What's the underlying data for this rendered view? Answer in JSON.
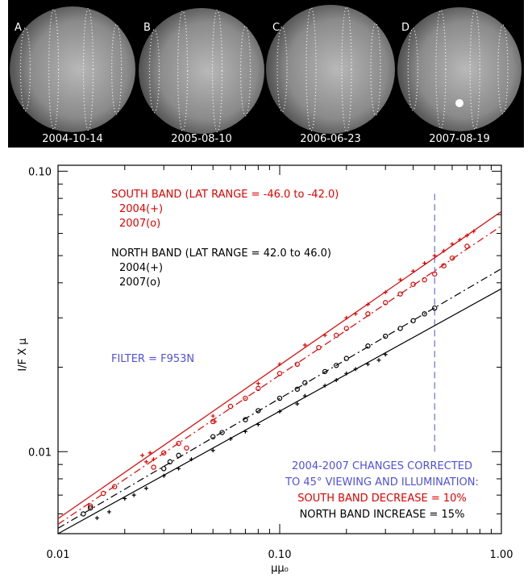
{
  "images": [
    {
      "label": "A",
      "date": "2004-10-14"
    },
    {
      "label": "B",
      "date": "2005-08-10"
    },
    {
      "label": "C",
      "date": "2006-06-23"
    },
    {
      "label": "D",
      "date": "2007-08-19"
    }
  ],
  "chart_data": {
    "type": "scatter",
    "xlabel": "μμ₀",
    "ylabel": "I/F X μ",
    "log_x": true,
    "log_y": true,
    "xlim": [
      0.01,
      1.0
    ],
    "ylim": [
      0.0051,
      0.105
    ],
    "xticks": [
      {
        "value": 0.01,
        "label": "0.01"
      },
      {
        "value": 0.1,
        "label": "0.10"
      },
      {
        "value": 1,
        "label": "1.00"
      }
    ],
    "yticks": [
      {
        "value": 0.01,
        "label": "0.01"
      },
      {
        "value": 0.1,
        "label": "0.10"
      }
    ],
    "xminor": [
      0.02,
      0.03,
      0.04,
      0.05,
      0.06,
      0.07,
      0.08,
      0.09,
      0.2,
      0.3,
      0.4,
      0.5,
      0.6,
      0.7,
      0.8,
      0.9
    ],
    "yminor": [
      0.006,
      0.007,
      0.008,
      0.009,
      0.02,
      0.03,
      0.04,
      0.05,
      0.06,
      0.07,
      0.08,
      0.09
    ],
    "annotations": [
      {
        "text": "SOUTH BAND (LAT RANGE = -46.0 to -42.0)",
        "color": "#e00000"
      },
      {
        "text": "NORTH BAND (LAT RANGE =  42.0 to  46.0)",
        "color": "#000000"
      },
      {
        "text": "FILTER = F953N",
        "color": "#5050e0"
      },
      {
        "text": "2004-2007 CHANGES CORRECTED",
        "color": "#5050e0"
      },
      {
        "text": "TO 45° VIEWING AND ILLUMINATION:",
        "color": "#5050e0"
      },
      {
        "text": "SOUTH BAND DECREASE =  10%",
        "color": "#e00000"
      },
      {
        "text": "NORTH BAND INCREASE =  15%",
        "color": "#000000"
      }
    ],
    "vline": {
      "x": 0.5,
      "y": [
        0.01,
        0.083
      ],
      "color": "#5050e0"
    },
    "fits": [
      {
        "color": "#e00000",
        "style": "solid",
        "x": [
          0.01,
          1.0
        ],
        "values": [
          0.00577,
          0.0718
        ]
      },
      {
        "color": "#e00000",
        "style": "dashdot",
        "x": [
          0.01,
          1.0
        ],
        "values": [
          0.00551,
          0.0638
        ]
      },
      {
        "color": "#000000",
        "style": "dashdot",
        "x": [
          0.01,
          1.0
        ],
        "values": [
          0.00533,
          0.0449
        ]
      },
      {
        "color": "#000000",
        "style": "solid",
        "x": [
          0.01,
          1.0
        ],
        "values": [
          0.0051,
          0.0381
        ]
      }
    ],
    "series": [
      {
        "name": "2004(+)",
        "color": "#e00000",
        "marker": "plus",
        "x": [
          0.024,
          0.025,
          0.026,
          0.027,
          0.05,
          0.051,
          0.08,
          0.1,
          0.13,
          0.16,
          0.2,
          0.22,
          0.25,
          0.3,
          0.35,
          0.4,
          0.45,
          0.5,
          0.55,
          0.6,
          0.65,
          0.7,
          0.75
        ],
        "values": [
          0.0097,
          0.0092,
          0.0099,
          0.0094,
          0.0134,
          0.0128,
          0.0175,
          0.0205,
          0.024,
          0.026,
          0.03,
          0.031,
          0.0335,
          0.037,
          0.041,
          0.044,
          0.047,
          0.05,
          0.052,
          0.055,
          0.057,
          0.059,
          0.061
        ]
      },
      {
        "name": "2007(o)",
        "color": "#e00000",
        "marker": "circle",
        "x": [
          0.014,
          0.016,
          0.018,
          0.027,
          0.03,
          0.035,
          0.038,
          0.05,
          0.06,
          0.07,
          0.08,
          0.1,
          0.12,
          0.15,
          0.18,
          0.2,
          0.25,
          0.3,
          0.35,
          0.4,
          0.45,
          0.5,
          0.55,
          0.6,
          0.7
        ],
        "values": [
          0.0064,
          0.0071,
          0.0075,
          0.0088,
          0.0099,
          0.0107,
          0.0103,
          0.0128,
          0.0145,
          0.0155,
          0.0168,
          0.019,
          0.0205,
          0.0235,
          0.026,
          0.0275,
          0.031,
          0.034,
          0.0365,
          0.0395,
          0.041,
          0.043,
          0.046,
          0.049,
          0.054
        ]
      },
      {
        "name": "2004(+)",
        "color": "#000000",
        "marker": "plus",
        "x": [
          0.015,
          0.017,
          0.02,
          0.022,
          0.025,
          0.03,
          0.035,
          0.04,
          0.05,
          0.06,
          0.07,
          0.08,
          0.1,
          0.12,
          0.13,
          0.16,
          0.18,
          0.2,
          0.22,
          0.25,
          0.28,
          0.3
        ],
        "values": [
          0.0058,
          0.0061,
          0.0068,
          0.007,
          0.0074,
          0.0082,
          0.0087,
          0.0094,
          0.0101,
          0.0111,
          0.0118,
          0.0125,
          0.0139,
          0.0148,
          0.0158,
          0.0172,
          0.018,
          0.019,
          0.0197,
          0.0205,
          0.0212,
          0.0222
        ]
      },
      {
        "name": "2007(o)",
        "color": "#000000",
        "marker": "circle",
        "x": [
          0.013,
          0.014,
          0.03,
          0.032,
          0.035,
          0.05,
          0.055,
          0.07,
          0.08,
          0.1,
          0.12,
          0.13,
          0.16,
          0.18,
          0.2,
          0.25,
          0.3,
          0.35,
          0.4,
          0.45,
          0.5
        ],
        "values": [
          0.006,
          0.0063,
          0.0087,
          0.0092,
          0.0097,
          0.0113,
          0.0117,
          0.013,
          0.014,
          0.0155,
          0.0167,
          0.0176,
          0.0193,
          0.0203,
          0.0215,
          0.0238,
          0.0258,
          0.0275,
          0.0293,
          0.031,
          0.0325
        ]
      }
    ]
  }
}
